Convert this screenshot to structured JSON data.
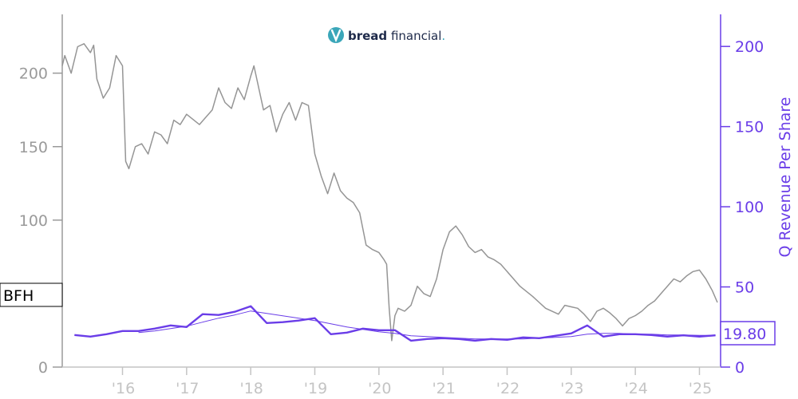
{
  "logo": {
    "brand_bold": "bread",
    "brand_light": " financial",
    "trademark": "."
  },
  "ticker": "BFH",
  "last_value_label": "19.80",
  "colors": {
    "price": "#959595",
    "revenue": "#6a3de8",
    "left_axis": "#9a9a9a",
    "x_axis": "#c4c4c4",
    "logo_teal": "#3aa6b9",
    "logo_navy": "#1e2a4a"
  },
  "chart_data": {
    "type": "line",
    "x_tick_labels": [
      "'16",
      "'17",
      "'18",
      "'19",
      "'20",
      "'21",
      "'22",
      "'23",
      "'24",
      "'25"
    ],
    "x_tick_years": [
      2016,
      2017,
      2018,
      2019,
      2020,
      2021,
      2022,
      2023,
      2024,
      2025
    ],
    "xlim": [
      2015.06,
      2025.33
    ],
    "y_left": {
      "ticks": [
        0,
        50,
        100,
        150,
        200
      ],
      "ylim": [
        0,
        240
      ]
    },
    "y_right": {
      "label": "Q Revenue Per Share",
      "ticks": [
        0,
        50,
        100,
        150,
        200
      ],
      "ylim": [
        0,
        220
      ]
    },
    "series": [
      {
        "axis": "left",
        "style": "price",
        "x": [
          2015.06,
          2015.1,
          2015.2,
          2015.3,
          2015.4,
          2015.5,
          2015.55,
          2015.6,
          2015.7,
          2015.8,
          2015.9,
          2016.0,
          2016.05,
          2016.1,
          2016.2,
          2016.3,
          2016.4,
          2016.5,
          2016.6,
          2016.7,
          2016.8,
          2016.9,
          2017.0,
          2017.2,
          2017.4,
          2017.5,
          2017.6,
          2017.7,
          2017.8,
          2017.9,
          2018.0,
          2018.05,
          2018.1,
          2018.2,
          2018.3,
          2018.4,
          2018.5,
          2018.6,
          2018.7,
          2018.8,
          2018.9,
          2019.0,
          2019.1,
          2019.2,
          2019.3,
          2019.4,
          2019.5,
          2019.6,
          2019.7,
          2019.8,
          2019.9,
          2020.0,
          2020.08,
          2020.12,
          2020.16,
          2020.2,
          2020.25,
          2020.3,
          2020.4,
          2020.5,
          2020.6,
          2020.7,
          2020.8,
          2020.9,
          2021.0,
          2021.1,
          2021.2,
          2021.3,
          2021.4,
          2021.5,
          2021.6,
          2021.7,
          2021.8,
          2021.9,
          2022.0,
          2022.2,
          2022.4,
          2022.5,
          2022.6,
          2022.8,
          2022.9,
          2023.0,
          2023.1,
          2023.2,
          2023.3,
          2023.4,
          2023.5,
          2023.6,
          2023.7,
          2023.8,
          2023.9,
          2024.0,
          2024.1,
          2024.2,
          2024.3,
          2024.4,
          2024.5,
          2024.6,
          2024.7,
          2024.8,
          2024.9,
          2025.0,
          2025.1,
          2025.2,
          2025.28
        ],
        "y": [
          205,
          212,
          200,
          218,
          220,
          214,
          219,
          196,
          183,
          190,
          212,
          205,
          140,
          135,
          150,
          152,
          145,
          160,
          158,
          152,
          168,
          165,
          172,
          165,
          175,
          190,
          180,
          176,
          190,
          182,
          198,
          205,
          195,
          175,
          178,
          160,
          172,
          180,
          168,
          180,
          178,
          145,
          130,
          118,
          132,
          120,
          115,
          112,
          105,
          83,
          80,
          78,
          73,
          70,
          40,
          18,
          35,
          40,
          38,
          42,
          55,
          50,
          48,
          60,
          80,
          92,
          96,
          90,
          82,
          78,
          80,
          75,
          73,
          70,
          65,
          55,
          48,
          44,
          40,
          36,
          42,
          41,
          40,
          36,
          31,
          38,
          40,
          37,
          33,
          28,
          33,
          35,
          38,
          42,
          45,
          50,
          55,
          60,
          58,
          62,
          65,
          66,
          60,
          52,
          44
        ]
      },
      {
        "axis": "right",
        "style": "revenue-main",
        "x": [
          2015.25,
          2015.5,
          2015.75,
          2016.0,
          2016.25,
          2016.5,
          2016.75,
          2017.0,
          2017.25,
          2017.5,
          2017.75,
          2018.0,
          2018.25,
          2018.5,
          2018.75,
          2019.0,
          2019.25,
          2019.5,
          2019.75,
          2020.0,
          2020.25,
          2020.5,
          2020.75,
          2021.0,
          2021.25,
          2021.5,
          2021.75,
          2022.0,
          2022.25,
          2022.5,
          2022.75,
          2023.0,
          2023.25,
          2023.5,
          2023.75,
          2024.0,
          2024.25,
          2024.5,
          2024.75,
          2025.0,
          2025.25
        ],
        "y": [
          20,
          19,
          20.5,
          22.5,
          22.5,
          24,
          26,
          25,
          33,
          32.5,
          34.5,
          38,
          27.5,
          28,
          29,
          30.5,
          20.5,
          21.5,
          24,
          23,
          23,
          16.5,
          17.5,
          18,
          17.5,
          16.5,
          17.5,
          17,
          18.5,
          18,
          19.5,
          21,
          26,
          19,
          20.5,
          20.5,
          20,
          19,
          19.8,
          19,
          19.8
        ]
      },
      {
        "axis": "right",
        "style": "revenue-thin",
        "x": [
          2016.25,
          2016.5,
          2016.75,
          2017.0,
          2017.25,
          2017.5,
          2017.75,
          2018.0,
          2018.25,
          2018.5,
          2018.75,
          2019.0,
          2019.25,
          2019.5,
          2019.75,
          2020.0,
          2020.25,
          2020.5,
          2020.75,
          2021.0,
          2021.25,
          2021.5,
          2021.75,
          2022.0,
          2022.25,
          2022.5,
          2022.75,
          2023.0,
          2023.25,
          2023.5,
          2023.75,
          2024.0,
          2024.25,
          2024.5,
          2024.75,
          2025.0,
          2025.25
        ],
        "y": [
          21.5,
          22.5,
          24,
          25.5,
          28,
          30.5,
          32.5,
          35,
          33.5,
          32,
          30.5,
          29,
          27,
          25,
          23.5,
          22,
          21,
          19.5,
          19,
          18.5,
          18,
          17.5,
          17.5,
          17.5,
          17.5,
          18,
          18.5,
          19,
          20.5,
          21,
          21,
          20.5,
          20.5,
          20,
          20,
          19.8,
          19.8
        ]
      }
    ]
  }
}
